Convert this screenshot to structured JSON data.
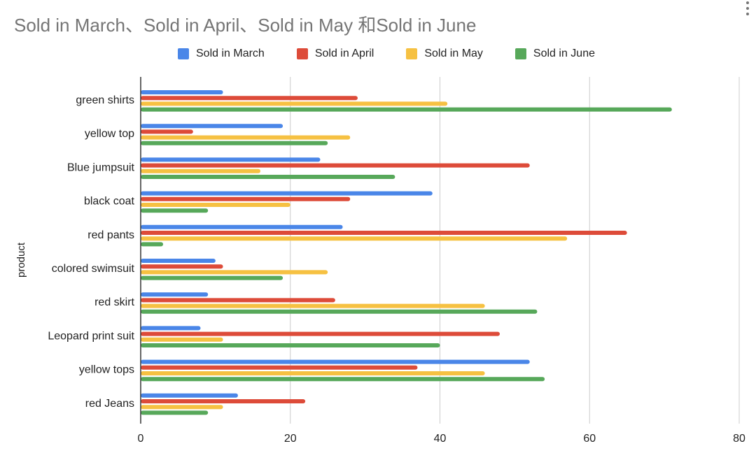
{
  "chart_data": {
    "type": "bar",
    "orientation": "horizontal",
    "title": "Sold in March、Sold in April、Sold in May 和Sold in June",
    "xlabel": "",
    "ylabel": "product",
    "xlim": [
      0,
      80
    ],
    "x_ticks": [
      "0",
      "20",
      "40",
      "60",
      "80"
    ],
    "grid": true,
    "legend_position": "top",
    "categories": [
      "green shirts",
      "yellow top",
      "Blue jumpsuit",
      "black coat",
      "red pants",
      "colored swimsuit",
      "red skirt",
      "Leopard print suit",
      "yellow tops",
      "red Jeans"
    ],
    "series": [
      {
        "name": "Sold in March",
        "color": "#4a86e8",
        "values": [
          11,
          19,
          24,
          39,
          27,
          10,
          9,
          8,
          52,
          13
        ]
      },
      {
        "name": "Sold in April",
        "color": "#dd4b39",
        "values": [
          29,
          7,
          52,
          28,
          65,
          11,
          26,
          48,
          37,
          22
        ]
      },
      {
        "name": "Sold in May",
        "color": "#f6c142",
        "values": [
          41,
          28,
          16,
          20,
          57,
          25,
          46,
          11,
          46,
          11
        ]
      },
      {
        "name": "Sold in June",
        "color": "#57a85a",
        "values": [
          71,
          25,
          34,
          9,
          3,
          19,
          53,
          40,
          54,
          9
        ]
      }
    ]
  },
  "menu": {
    "icon": "more-vert-icon"
  }
}
